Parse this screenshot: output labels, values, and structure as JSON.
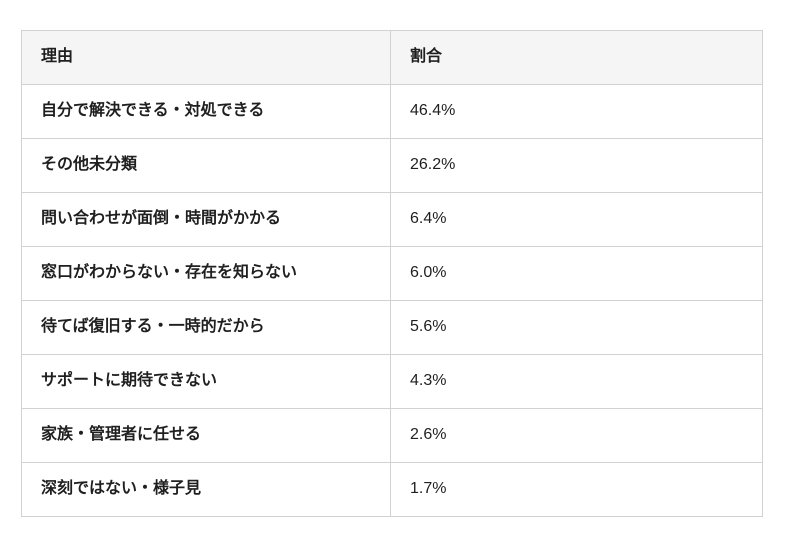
{
  "table": {
    "columns": [
      {
        "key": "reason",
        "label": "理由"
      },
      {
        "key": "percentage",
        "label": "割合"
      }
    ],
    "rows": [
      {
        "reason": "自分で解決できる・対処できる",
        "percentage": "46.4%"
      },
      {
        "reason": "その他未分類",
        "percentage": "26.2%"
      },
      {
        "reason": "問い合わせが面倒・時間がかかる",
        "percentage": "6.4%"
      },
      {
        "reason": "窓口がわからない・存在を知らない",
        "percentage": "6.0%"
      },
      {
        "reason": "待てば復旧する・一時的だから",
        "percentage": "5.6%"
      },
      {
        "reason": "サポートに期待できない",
        "percentage": "4.3%"
      },
      {
        "reason": "家族・管理者に任せる",
        "percentage": "2.6%"
      },
      {
        "reason": "深刻ではない・様子見",
        "percentage": "1.7%"
      }
    ]
  },
  "colors": {
    "header_background": "#f5f5f5",
    "border": "#d2d2d2",
    "text": "#1f1f1f",
    "page_background": "#ffffff"
  },
  "chart_data": {
    "type": "table",
    "columns": [
      "理由",
      "割合"
    ],
    "categories": [
      "自分で解決できる・対処できる",
      "その他未分類",
      "問い合わせが面倒・時間がかかる",
      "窓口がわからない・存在を知らない",
      "待てば復旧する・一時的だから",
      "サポートに期待できない",
      "家族・管理者に任せる",
      "深刻ではない・様子見"
    ],
    "values": [
      46.4,
      26.2,
      6.4,
      6.0,
      5.6,
      4.3,
      2.6,
      1.7
    ],
    "unit": "%"
  }
}
